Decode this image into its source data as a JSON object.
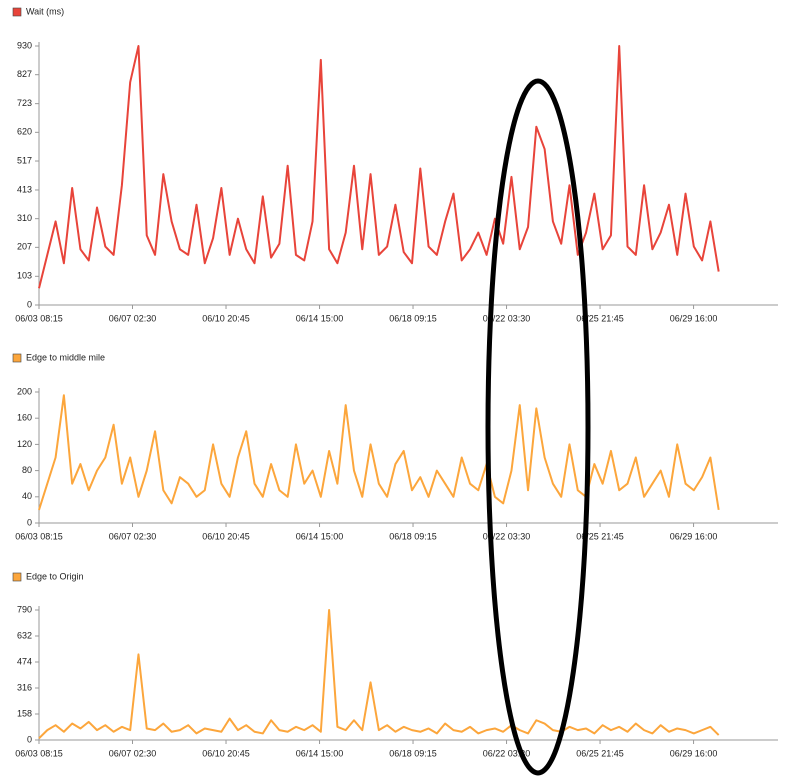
{
  "chart_data": [
    {
      "type": "line",
      "x": [
        "06/03 08:15",
        "06/03 16:15",
        "06/04 00:15",
        "06/04 08:15",
        "06/04 16:15",
        "06/05 00:15",
        "06/05 08:15",
        "06/05 16:15",
        "06/06 00:15",
        "06/06 08:15",
        "06/06 16:15",
        "06/07 00:15",
        "06/07 08:15",
        "06/07 16:15",
        "06/08 00:15",
        "06/08 08:15",
        "06/08 16:15",
        "06/09 00:15",
        "06/09 08:15",
        "06/09 16:15",
        "06/10 00:15",
        "06/10 08:15",
        "06/10 16:15",
        "06/11 00:15",
        "06/11 08:15",
        "06/11 16:15",
        "06/12 00:15",
        "06/12 08:15",
        "06/12 16:15",
        "06/13 00:15",
        "06/13 08:15",
        "06/13 16:15",
        "06/14 00:15",
        "06/14 08:15",
        "06/14 16:15",
        "06/15 00:15",
        "06/15 08:15",
        "06/15 16:15",
        "06/16 00:15",
        "06/16 08:15",
        "06/16 16:15",
        "06/17 00:15",
        "06/17 08:15",
        "06/17 16:15",
        "06/18 00:15",
        "06/18 08:15",
        "06/18 16:15",
        "06/19 00:15",
        "06/19 08:15",
        "06/19 16:15",
        "06/20 00:15",
        "06/20 08:15",
        "06/20 16:15",
        "06/21 00:15",
        "06/21 08:15",
        "06/21 16:15",
        "06/22 00:15",
        "06/22 08:15",
        "06/22 16:15",
        "06/23 00:15",
        "06/23 08:15",
        "06/23 16:15",
        "06/24 00:15",
        "06/24 08:15",
        "06/24 16:15",
        "06/25 00:15",
        "06/25 08:15",
        "06/25 16:15",
        "06/26 00:15",
        "06/26 08:15",
        "06/26 16:15",
        "06/27 00:15",
        "06/27 08:15",
        "06/27 16:15",
        "06/28 00:15",
        "06/28 08:15",
        "06/28 16:15",
        "06/29 00:15",
        "06/29 08:15",
        "06/29 16:15",
        "06/30 00:15",
        "06/30 08:15",
        "06/30 16:15"
      ],
      "series": [
        {
          "name": "Wait (ms)",
          "color": "#e8443a",
          "values": [
            60,
            180,
            300,
            150,
            420,
            200,
            160,
            350,
            210,
            180,
            430,
            800,
            930,
            250,
            180,
            470,
            300,
            200,
            180,
            360,
            150,
            240,
            420,
            180,
            310,
            200,
            150,
            390,
            170,
            220,
            500,
            180,
            160,
            300,
            880,
            200,
            150,
            260,
            500,
            200,
            470,
            180,
            210,
            360,
            190,
            150,
            490,
            210,
            180,
            300,
            400,
            160,
            200,
            260,
            180,
            310,
            220,
            460,
            200,
            280,
            640,
            560,
            300,
            220,
            430,
            180,
            260,
            400,
            200,
            250,
            930,
            210,
            180,
            430,
            200,
            260,
            360,
            180,
            400,
            210,
            160,
            300,
            120
          ]
        }
      ],
      "xlim": [
        "06/03 08:15",
        "07/03 01:30"
      ],
      "xticks": [
        "06/03 08:15",
        "06/07 02:30",
        "06/10 20:45",
        "06/14 15:00",
        "06/18 09:15",
        "06/22 03:30",
        "06/25 21:45",
        "06/29 16:00"
      ],
      "ylim": [
        0,
        930
      ],
      "yticks": [
        0,
        103,
        207,
        310,
        413,
        517,
        620,
        723,
        827,
        930
      ]
    },
    {
      "type": "line",
      "x": [
        "06/03 08:15",
        "06/03 16:15",
        "06/04 00:15",
        "06/04 08:15",
        "06/04 16:15",
        "06/05 00:15",
        "06/05 08:15",
        "06/05 16:15",
        "06/06 00:15",
        "06/06 08:15",
        "06/06 16:15",
        "06/07 00:15",
        "06/07 08:15",
        "06/07 16:15",
        "06/08 00:15",
        "06/08 08:15",
        "06/08 16:15",
        "06/09 00:15",
        "06/09 08:15",
        "06/09 16:15",
        "06/10 00:15",
        "06/10 08:15",
        "06/10 16:15",
        "06/11 00:15",
        "06/11 08:15",
        "06/11 16:15",
        "06/12 00:15",
        "06/12 08:15",
        "06/12 16:15",
        "06/13 00:15",
        "06/13 08:15",
        "06/13 16:15",
        "06/14 00:15",
        "06/14 08:15",
        "06/14 16:15",
        "06/15 00:15",
        "06/15 08:15",
        "06/15 16:15",
        "06/16 00:15",
        "06/16 08:15",
        "06/16 16:15",
        "06/17 00:15",
        "06/17 08:15",
        "06/17 16:15",
        "06/18 00:15",
        "06/18 08:15",
        "06/18 16:15",
        "06/19 00:15",
        "06/19 08:15",
        "06/19 16:15",
        "06/20 00:15",
        "06/20 08:15",
        "06/20 16:15",
        "06/21 00:15",
        "06/21 08:15",
        "06/21 16:15",
        "06/22 00:15",
        "06/22 08:15",
        "06/22 16:15",
        "06/23 00:15",
        "06/23 08:15",
        "06/23 16:15",
        "06/24 00:15",
        "06/24 08:15",
        "06/24 16:15",
        "06/25 00:15",
        "06/25 08:15",
        "06/25 16:15",
        "06/26 00:15",
        "06/26 08:15",
        "06/26 16:15",
        "06/27 00:15",
        "06/27 08:15",
        "06/27 16:15",
        "06/28 00:15",
        "06/28 08:15",
        "06/28 16:15",
        "06/29 00:15",
        "06/29 08:15",
        "06/29 16:15",
        "06/30 00:15",
        "06/30 08:15",
        "06/30 16:15"
      ],
      "series": [
        {
          "name": "Edge to middle mile",
          "color": "#fca63c",
          "values": [
            20,
            60,
            100,
            195,
            60,
            90,
            50,
            80,
            100,
            150,
            60,
            100,
            40,
            80,
            140,
            50,
            30,
            70,
            60,
            40,
            50,
            120,
            60,
            40,
            100,
            140,
            60,
            40,
            90,
            50,
            40,
            120,
            60,
            80,
            40,
            110,
            60,
            180,
            80,
            40,
            120,
            60,
            40,
            90,
            110,
            50,
            70,
            40,
            80,
            60,
            40,
            100,
            60,
            50,
            90,
            40,
            30,
            80,
            180,
            50,
            175,
            100,
            60,
            40,
            120,
            50,
            40,
            90,
            60,
            110,
            50,
            60,
            100,
            40,
            60,
            80,
            40,
            120,
            60,
            50,
            70,
            100,
            20
          ]
        }
      ],
      "xlim": [
        "06/03 08:15",
        "07/03 01:30"
      ],
      "xticks": [
        "06/03 08:15",
        "06/07 02:30",
        "06/10 20:45",
        "06/14 15:00",
        "06/18 09:15",
        "06/22 03:30",
        "06/25 21:45",
        "06/29 16:00"
      ],
      "ylim": [
        0,
        200
      ],
      "yticks": [
        0,
        40,
        80,
        120,
        160,
        200
      ]
    },
    {
      "type": "line",
      "x": [
        "06/03 08:15",
        "06/03 16:15",
        "06/04 00:15",
        "06/04 08:15",
        "06/04 16:15",
        "06/05 00:15",
        "06/05 08:15",
        "06/05 16:15",
        "06/06 00:15",
        "06/06 08:15",
        "06/06 16:15",
        "06/07 00:15",
        "06/07 08:15",
        "06/07 16:15",
        "06/08 00:15",
        "06/08 08:15",
        "06/08 16:15",
        "06/09 00:15",
        "06/09 08:15",
        "06/09 16:15",
        "06/10 00:15",
        "06/10 08:15",
        "06/10 16:15",
        "06/11 00:15",
        "06/11 08:15",
        "06/11 16:15",
        "06/12 00:15",
        "06/12 08:15",
        "06/12 16:15",
        "06/13 00:15",
        "06/13 08:15",
        "06/13 16:15",
        "06/14 00:15",
        "06/14 08:15",
        "06/14 16:15",
        "06/15 00:15",
        "06/15 08:15",
        "06/15 16:15",
        "06/16 00:15",
        "06/16 08:15",
        "06/16 16:15",
        "06/17 00:15",
        "06/17 08:15",
        "06/17 16:15",
        "06/18 00:15",
        "06/18 08:15",
        "06/18 16:15",
        "06/19 00:15",
        "06/19 08:15",
        "06/19 16:15",
        "06/20 00:15",
        "06/20 08:15",
        "06/20 16:15",
        "06/21 00:15",
        "06/21 08:15",
        "06/21 16:15",
        "06/22 00:15",
        "06/22 08:15",
        "06/22 16:15",
        "06/23 00:15",
        "06/23 08:15",
        "06/23 16:15",
        "06/24 00:15",
        "06/24 08:15",
        "06/24 16:15",
        "06/25 00:15",
        "06/25 08:15",
        "06/25 16:15",
        "06/26 00:15",
        "06/26 08:15",
        "06/26 16:15",
        "06/27 00:15",
        "06/27 08:15",
        "06/27 16:15",
        "06/28 00:15",
        "06/28 08:15",
        "06/28 16:15",
        "06/29 00:15",
        "06/29 08:15",
        "06/29 16:15",
        "06/30 00:15",
        "06/30 08:15",
        "06/30 16:15"
      ],
      "series": [
        {
          "name": "Edge to Origin",
          "color": "#fca63c",
          "values": [
            10,
            60,
            90,
            50,
            100,
            70,
            110,
            60,
            90,
            50,
            80,
            60,
            520,
            70,
            60,
            100,
            50,
            60,
            90,
            40,
            70,
            60,
            50,
            130,
            60,
            90,
            50,
            40,
            120,
            60,
            50,
            80,
            60,
            90,
            50,
            790,
            80,
            60,
            120,
            60,
            350,
            60,
            90,
            50,
            80,
            60,
            50,
            70,
            40,
            100,
            60,
            50,
            80,
            40,
            60,
            70,
            50,
            90,
            60,
            40,
            120,
            100,
            60,
            50,
            80,
            60,
            70,
            40,
            90,
            60,
            80,
            50,
            100,
            60,
            40,
            90,
            50,
            70,
            60,
            40,
            60,
            80,
            30
          ]
        }
      ],
      "xlim": [
        "06/03 08:15",
        "07/03 01:30"
      ],
      "xticks": [
        "06/03 08:15",
        "06/07 02:30",
        "06/10 20:45",
        "06/14 15:00",
        "06/18 09:15",
        "06/22 03:30",
        "06/25 21:45",
        "06/29 16:00"
      ],
      "ylim": [
        0,
        790
      ],
      "yticks": [
        0,
        158,
        316,
        474,
        632,
        790
      ]
    }
  ]
}
